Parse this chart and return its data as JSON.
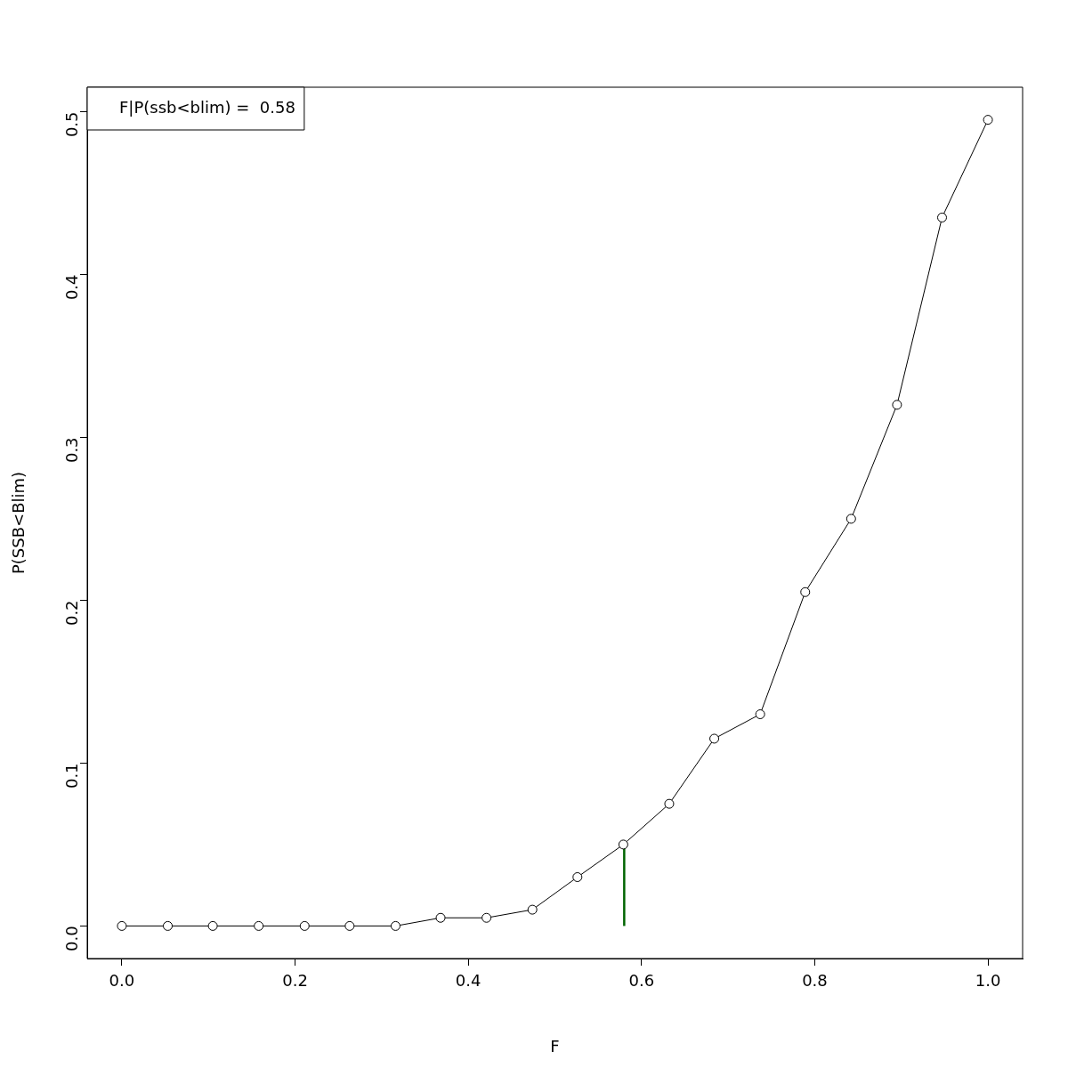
{
  "chart_data": {
    "type": "line",
    "xlabel": "F",
    "ylabel": "P(SSB<Blim)",
    "annotations": [
      "F|P(ssb<blim) =  0.58"
    ],
    "x": [
      0,
      0.053,
      0.105,
      0.158,
      0.211,
      0.263,
      0.316,
      0.368,
      0.421,
      0.474,
      0.526,
      0.579,
      0.632,
      0.684,
      0.737,
      0.789,
      0.842,
      0.895,
      0.947,
      1.0
    ],
    "series": [
      {
        "color": "#000000",
        "values": [
          0,
          0,
          0,
          0,
          0,
          0,
          0,
          0.005,
          0.005,
          0.01,
          0.03,
          0.05,
          0.075,
          0.115,
          0.13,
          0.205,
          0.25,
          0.32,
          0.435,
          0.495
        ]
      },
      {
        "type": "line",
        "marker": "none",
        "color": "#006400",
        "x": [
          0.58,
          0.58
        ],
        "values": [
          0,
          0.05
        ]
      }
    ],
    "marker": "circle",
    "line_style": "solid",
    "grid": false,
    "legend": false,
    "xlim": [
      -0.04,
      1.04
    ],
    "ylim": [
      -0.02,
      0.515
    ],
    "xticks": [
      {
        "value": 0,
        "label": "0.0"
      },
      {
        "value": 0.2,
        "label": "0.2"
      },
      {
        "value": 0.4,
        "label": "0.4"
      },
      {
        "value": 0.6,
        "label": "0.6"
      },
      {
        "value": 0.8,
        "label": "0.8"
      },
      {
        "value": 1,
        "label": "1.0"
      }
    ],
    "yticks": [
      {
        "value": 0,
        "label": "0.0"
      },
      {
        "value": 0.1,
        "label": "0.1"
      },
      {
        "value": 0.2,
        "label": "0.2"
      },
      {
        "value": 0.3,
        "label": "0.3"
      },
      {
        "value": 0.4,
        "label": "0.4"
      },
      {
        "value": 0.5,
        "label": "0.5"
      }
    ]
  }
}
